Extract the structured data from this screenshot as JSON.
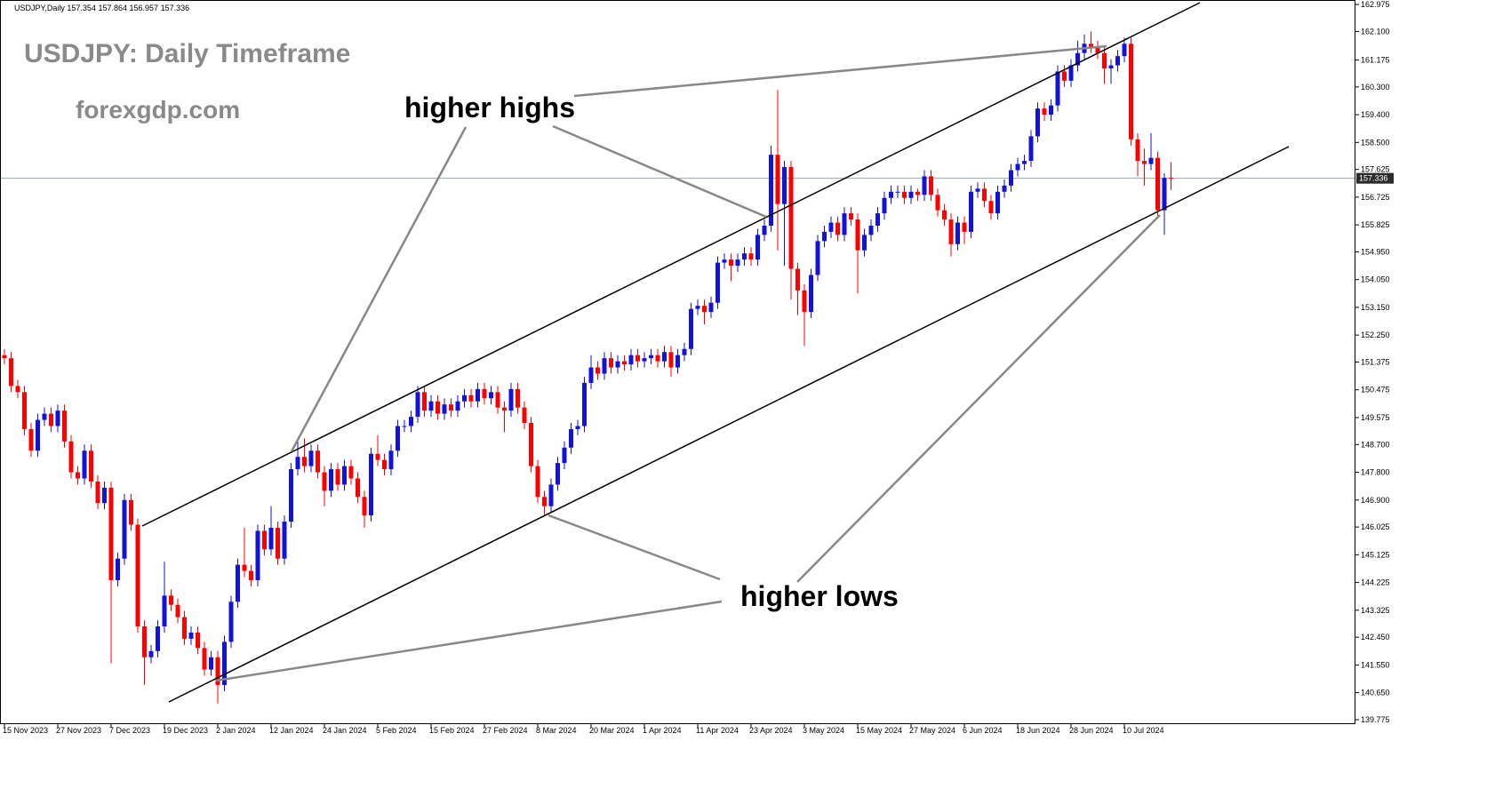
{
  "chart_data": {
    "type": "candlestick",
    "symbol": "USDJPY,Daily",
    "title": "USDJPY: Daily Timeframe",
    "subtitle": "forexgdp.com",
    "annotations": [
      "higher highs",
      "higher lows"
    ],
    "up_color": "#1212d8",
    "down_color": "#ff0000",
    "categories": [
      "15 Nov 2023",
      null,
      null,
      null,
      null,
      null,
      null,
      null,
      "27 Nov 2023",
      null,
      null,
      null,
      null,
      null,
      null,
      null,
      "7 Dec 2023",
      null,
      null,
      null,
      null,
      null,
      null,
      null,
      "19 Dec 2023",
      null,
      null,
      null,
      null,
      null,
      null,
      null,
      "2 Jan 2024",
      null,
      null,
      null,
      null,
      null,
      null,
      null,
      "12 Jan 2024",
      null,
      null,
      null,
      null,
      null,
      null,
      null,
      "24 Jan 2024",
      null,
      null,
      null,
      null,
      null,
      null,
      null,
      "5 Feb 2024",
      null,
      null,
      null,
      null,
      null,
      null,
      null,
      "15 Feb 2024",
      null,
      null,
      null,
      null,
      null,
      null,
      null,
      "27 Feb 2024",
      null,
      null,
      null,
      null,
      null,
      null,
      null,
      "8 Mar 2024",
      null,
      null,
      null,
      null,
      null,
      null,
      null,
      "20 Mar 2024",
      null,
      null,
      null,
      null,
      null,
      null,
      null,
      "1 Apr 2024",
      null,
      null,
      null,
      null,
      null,
      null,
      null,
      "11 Apr 2024",
      null,
      null,
      null,
      null,
      null,
      null,
      null,
      "23 Apr 2024",
      null,
      null,
      null,
      null,
      null,
      null,
      null,
      "3 May 2024",
      null,
      null,
      null,
      null,
      null,
      null,
      null,
      "15 May 2024",
      null,
      null,
      null,
      null,
      null,
      null,
      null,
      "27 May 2024",
      null,
      null,
      null,
      null,
      null,
      null,
      null,
      "6 Jun 2024",
      null,
      null,
      null,
      null,
      null,
      null,
      null,
      "18 Jun 2024",
      null,
      null,
      null,
      null,
      null,
      null,
      null,
      "28 Jun 2024",
      null,
      null,
      null,
      null,
      null,
      null,
      null,
      "10 Jul 2024",
      null,
      null,
      null,
      null,
      null,
      null,
      null
    ],
    "open": [
      151.6,
      151.5,
      150.6,
      150.4,
      149.2,
      148.5,
      149.5,
      149.7,
      149.3,
      149.8,
      148.8,
      147.8,
      147.6,
      148.5,
      147.5,
      146.8,
      147.3,
      144.3,
      145.0,
      146.9,
      146.1,
      142.8,
      141.8,
      142.0,
      142.8,
      143.8,
      143.5,
      143.1,
      142.4,
      142.6,
      142.1,
      141.4,
      141.8,
      140.9,
      142.3,
      143.6,
      144.8,
      144.6,
      144.3,
      145.9,
      145.3,
      146.0,
      145.0,
      146.2,
      147.9,
      148.3,
      148.0,
      148.5,
      147.8,
      147.2,
      147.9,
      147.4,
      148.0,
      147.6,
      147.0,
      146.4,
      148.4,
      148.2,
      147.9,
      148.5,
      149.3,
      149.3,
      149.6,
      150.4,
      149.8,
      150.1,
      149.7,
      150.0,
      149.8,
      150.1,
      150.3,
      150.1,
      150.5,
      150.2,
      150.4,
      149.9,
      149.8,
      150.5,
      149.9,
      149.4,
      148.0,
      147.0,
      146.7,
      147.4,
      148.1,
      148.6,
      149.2,
      149.3,
      150.7,
      151.2,
      151.0,
      151.5,
      151.2,
      151.4,
      151.3,
      151.6,
      151.4,
      151.5,
      151.6,
      151.4,
      151.7,
      151.2,
      151.6,
      151.8,
      153.1,
      153.2,
      153.0,
      153.3,
      154.6,
      154.7,
      154.5,
      154.7,
      154.9,
      154.7,
      155.5,
      155.8,
      158.1,
      156.5,
      157.7,
      154.4,
      153.7,
      153.0,
      154.2,
      155.3,
      155.6,
      155.9,
      155.5,
      156.2,
      156.0,
      155.0,
      155.5,
      155.8,
      156.2,
      156.7,
      156.9,
      156.9,
      156.7,
      156.9,
      156.8,
      157.4,
      156.8,
      156.3,
      156.0,
      155.2,
      155.9,
      155.6,
      156.9,
      157.0,
      156.6,
      156.2,
      156.9,
      157.1,
      157.6,
      157.8,
      157.9,
      158.7,
      159.6,
      159.4,
      159.7,
      160.8,
      160.5,
      161.0,
      161.4,
      161.7,
      161.6,
      161.4,
      160.9,
      161.0,
      161.3,
      161.7,
      158.6,
      157.9,
      157.8,
      158.0,
      156.3,
      157.354
    ],
    "high": [
      151.8,
      151.7,
      150.8,
      150.6,
      149.4,
      149.7,
      149.9,
      149.9,
      150.0,
      150.0,
      149.0,
      148.0,
      148.7,
      148.7,
      147.7,
      147.5,
      147.5,
      145.2,
      147.1,
      147.1,
      146.3,
      143.0,
      142.2,
      143.0,
      144.9,
      144.0,
      143.7,
      143.3,
      142.8,
      142.8,
      142.3,
      142.0,
      142.0,
      142.5,
      143.8,
      145.0,
      146.0,
      144.8,
      146.1,
      146.1,
      146.7,
      146.2,
      146.4,
      148.1,
      148.8,
      148.9,
      148.7,
      148.7,
      148.0,
      148.1,
      148.1,
      148.2,
      148.2,
      147.8,
      147.2,
      148.6,
      149.0,
      148.4,
      148.7,
      149.5,
      149.5,
      149.8,
      150.6,
      150.6,
      150.3,
      150.3,
      150.2,
      150.2,
      150.3,
      150.5,
      150.5,
      150.7,
      150.7,
      150.6,
      150.6,
      150.1,
      150.7,
      150.7,
      150.1,
      149.6,
      148.2,
      147.2,
      147.6,
      148.3,
      148.8,
      149.4,
      149.5,
      150.9,
      151.6,
      151.4,
      151.7,
      151.7,
      151.6,
      151.6,
      151.8,
      151.8,
      151.7,
      151.8,
      151.8,
      151.9,
      151.9,
      151.8,
      152.0,
      153.3,
      153.4,
      153.4,
      153.5,
      154.8,
      154.9,
      154.9,
      154.9,
      155.1,
      155.1,
      155.7,
      156.0,
      158.4,
      160.2,
      157.9,
      157.9,
      154.6,
      153.9,
      154.4,
      155.5,
      155.8,
      156.1,
      156.1,
      156.4,
      156.4,
      156.2,
      155.7,
      156.0,
      156.4,
      156.9,
      157.1,
      157.1,
      157.1,
      157.1,
      157.0,
      157.6,
      157.6,
      157.0,
      156.5,
      156.2,
      156.1,
      156.1,
      157.1,
      157.2,
      157.2,
      156.8,
      157.1,
      157.3,
      157.8,
      158.0,
      158.1,
      158.9,
      159.8,
      159.8,
      159.9,
      161.0,
      161.0,
      161.2,
      161.8,
      162.0,
      162.1,
      161.8,
      161.6,
      161.2,
      161.5,
      161.9,
      161.9,
      158.8,
      158.3,
      158.8,
      158.2,
      157.5,
      157.864
    ],
    "low": [
      151.3,
      150.4,
      150.2,
      149.0,
      148.3,
      148.3,
      149.3,
      149.1,
      149.1,
      148.6,
      147.6,
      147.4,
      147.4,
      147.3,
      146.6,
      146.6,
      141.6,
      144.1,
      144.8,
      145.9,
      142.6,
      140.9,
      141.6,
      141.8,
      142.6,
      143.3,
      142.9,
      142.2,
      142.2,
      141.9,
      141.2,
      141.2,
      140.3,
      140.7,
      142.1,
      143.4,
      144.4,
      144.1,
      144.1,
      145.1,
      145.1,
      144.8,
      144.8,
      146.0,
      147.7,
      147.8,
      147.8,
      147.6,
      146.7,
      147.0,
      147.2,
      147.2,
      147.4,
      146.8,
      146.0,
      146.2,
      148.0,
      147.7,
      147.7,
      148.3,
      149.1,
      149.1,
      149.4,
      149.6,
      149.6,
      149.5,
      149.5,
      149.6,
      149.6,
      149.9,
      149.9,
      149.9,
      150.0,
      150.0,
      149.7,
      149.1,
      149.6,
      149.7,
      149.2,
      147.8,
      146.8,
      146.4,
      146.5,
      147.2,
      147.9,
      148.4,
      149.0,
      149.1,
      150.5,
      150.8,
      150.8,
      151.0,
      151.0,
      151.1,
      151.1,
      151.2,
      151.2,
      151.3,
      151.2,
      151.2,
      150.9,
      151.0,
      151.4,
      151.6,
      152.9,
      152.6,
      152.8,
      153.1,
      154.4,
      154.0,
      154.3,
      154.5,
      154.5,
      154.5,
      155.3,
      155.6,
      155.0,
      154.5,
      153.4,
      152.9,
      151.9,
      152.8,
      154.0,
      155.1,
      155.4,
      155.3,
      155.3,
      155.8,
      153.6,
      154.8,
      155.3,
      155.6,
      156.0,
      156.5,
      156.7,
      156.5,
      156.5,
      156.6,
      156.6,
      156.6,
      156.1,
      155.8,
      154.8,
      155.0,
      155.2,
      155.4,
      156.7,
      156.4,
      156.0,
      156.0,
      156.7,
      156.9,
      157.4,
      157.6,
      157.7,
      158.5,
      159.2,
      159.2,
      159.5,
      160.3,
      160.3,
      160.8,
      161.2,
      161.4,
      161.2,
      160.4,
      160.4,
      160.8,
      161.1,
      158.4,
      157.4,
      157.1,
      157.6,
      156.1,
      155.5,
      156.957
    ],
    "close": [
      151.5,
      150.6,
      150.4,
      149.2,
      148.5,
      149.5,
      149.7,
      149.3,
      149.8,
      148.8,
      147.8,
      147.6,
      148.5,
      147.5,
      146.8,
      147.3,
      144.3,
      145.0,
      146.9,
      146.1,
      142.8,
      141.8,
      142.0,
      142.8,
      143.8,
      143.5,
      143.1,
      142.4,
      142.6,
      142.1,
      141.4,
      141.8,
      140.9,
      142.3,
      143.6,
      144.8,
      144.6,
      144.3,
      145.9,
      145.3,
      146.0,
      145.0,
      146.2,
      147.9,
      148.3,
      148.0,
      148.5,
      147.8,
      147.2,
      147.9,
      147.4,
      148.0,
      147.6,
      147.0,
      146.4,
      148.4,
      148.2,
      147.9,
      148.5,
      149.3,
      149.3,
      149.6,
      150.4,
      149.8,
      150.1,
      149.7,
      150.0,
      149.8,
      150.1,
      150.3,
      150.1,
      150.5,
      150.2,
      150.4,
      149.9,
      149.8,
      150.5,
      149.9,
      149.4,
      148.0,
      147.0,
      146.7,
      147.4,
      148.1,
      148.6,
      149.2,
      149.3,
      150.7,
      151.2,
      151.0,
      151.5,
      151.2,
      151.4,
      151.3,
      151.6,
      151.4,
      151.5,
      151.6,
      151.4,
      151.7,
      151.2,
      151.6,
      151.8,
      153.1,
      153.2,
      153.0,
      153.3,
      154.6,
      154.7,
      154.5,
      154.7,
      154.9,
      154.7,
      155.5,
      155.8,
      158.1,
      156.5,
      157.7,
      154.4,
      153.7,
      153.0,
      154.2,
      155.3,
      155.6,
      155.9,
      155.5,
      156.2,
      156.0,
      155.0,
      155.5,
      155.8,
      156.2,
      156.7,
      156.9,
      156.9,
      156.7,
      156.9,
      156.8,
      157.4,
      156.8,
      156.3,
      156.0,
      155.2,
      155.9,
      155.6,
      156.9,
      157.0,
      156.6,
      156.2,
      156.9,
      157.1,
      157.6,
      157.8,
      157.9,
      158.7,
      159.6,
      159.4,
      159.7,
      160.8,
      160.5,
      161.0,
      161.4,
      161.7,
      161.6,
      161.4,
      160.9,
      161.0,
      161.3,
      161.7,
      158.6,
      157.9,
      157.8,
      158.0,
      156.3,
      157.35,
      157.336
    ],
    "ylim": [
      139.63,
      163.12
    ],
    "yticks": [
      162.975,
      {
        "value": 162.1,
        "label": "162.100"
      },
      161.175,
      {
        "value": 160.3,
        "label": "160.300"
      },
      {
        "value": 159.4,
        "label": "159.400"
      },
      {
        "value": 158.5,
        "label": "158.500"
      },
      157.625,
      156.725,
      155.825,
      {
        "value": 154.95,
        "label": "154.950"
      },
      {
        "value": 154.05,
        "label": "154.050"
      },
      {
        "value": 153.15,
        "label": "153.150"
      },
      {
        "value": 152.25,
        "label": "152.250"
      },
      151.375,
      150.475,
      149.575,
      {
        "value": 148.7,
        "label": "148.700"
      },
      {
        "value": 147.8,
        "label": "147.800"
      },
      {
        "value": 146.9,
        "label": "146.900"
      },
      146.025,
      145.125,
      144.225,
      143.325,
      {
        "value": 142.45,
        "label": "142.450"
      },
      {
        "value": 141.55,
        "label": "141.550"
      },
      {
        "value": 140.65,
        "label": "140.650"
      },
      139.775
    ],
    "grid": false
  }
}
